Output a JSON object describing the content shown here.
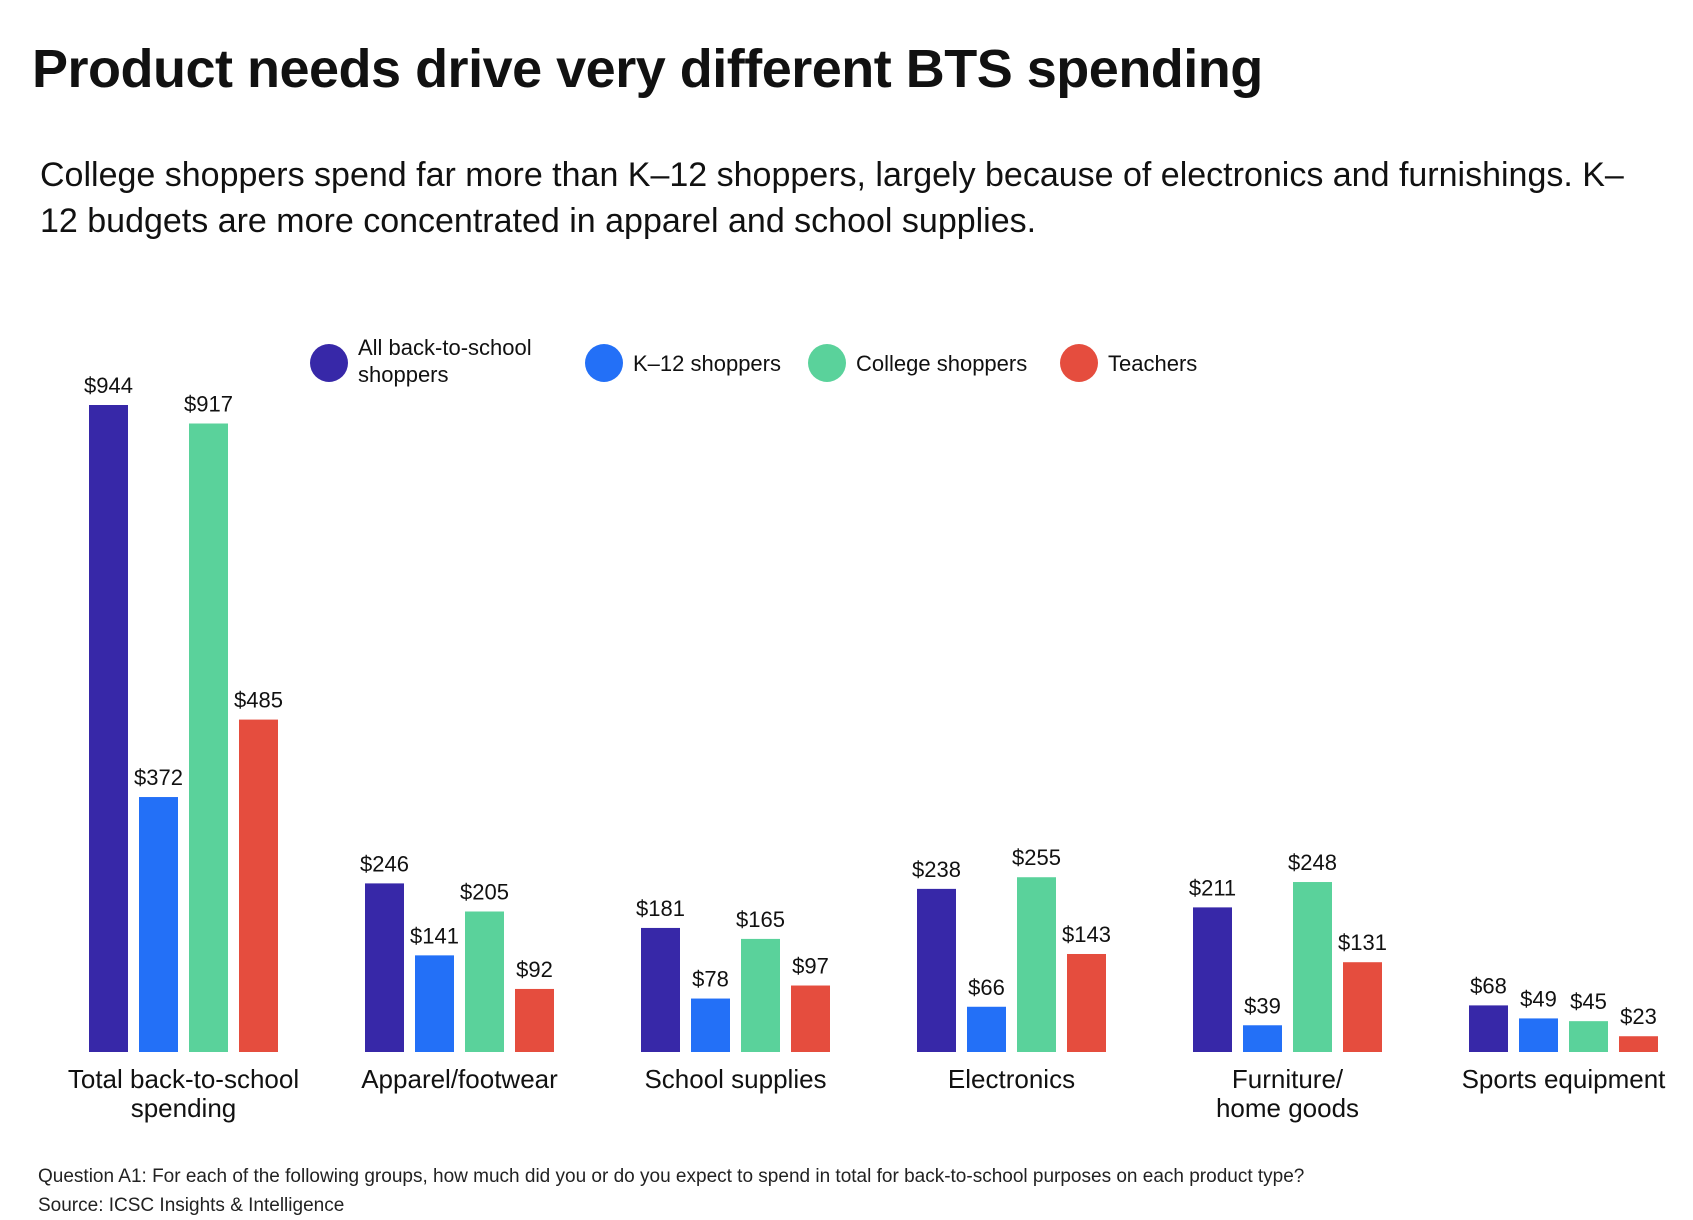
{
  "title": "Product needs drive very different BTS spending",
  "subtitle": "College shoppers spend far more than K–12 shoppers, largely because of electronics and furnishings. K–12 budgets are more concentrated in apparel and school supplies.",
  "footnote": {
    "question": "Question A1: For each of the following groups, how much did you or do you expect to spend in total for back-to-school purposes on each product type?",
    "source": "Source: ICSC Insights & Intelligence"
  },
  "legend": [
    {
      "label": "All back-to-school shoppers",
      "color": "#3728a8"
    },
    {
      "label": "K–12 shoppers",
      "color": "#2370f7"
    },
    {
      "label": "College shoppers",
      "color": "#5ad29b"
    },
    {
      "label": "Teachers",
      "color": "#e54d3e"
    }
  ],
  "chart_data": {
    "type": "bar",
    "title": "Product needs drive very different BTS spending",
    "categories": [
      [
        "Total back-to-school",
        "spending"
      ],
      [
        "Apparel/footwear"
      ],
      [
        "School supplies"
      ],
      [
        "Electronics"
      ],
      [
        "Furniture/",
        "home goods"
      ],
      [
        "Sports equipment"
      ]
    ],
    "series": [
      {
        "name": "All back-to-school shoppers",
        "color": "#3728a8",
        "values": [
          944,
          246,
          181,
          238,
          211,
          68
        ],
        "labels": [
          "$944",
          "$246",
          "$181",
          "$238",
          "$211",
          "$68"
        ]
      },
      {
        "name": "K–12 shoppers",
        "color": "#2370f7",
        "values": [
          372,
          141,
          78,
          66,
          39,
          49
        ],
        "labels": [
          "$372",
          "$141",
          "$78",
          "$66",
          "$39",
          "$49"
        ]
      },
      {
        "name": "College shoppers",
        "color": "#5ad29b",
        "values": [
          917,
          205,
          165,
          255,
          248,
          45
        ],
        "labels": [
          "$917",
          "$205",
          "$165",
          "$255",
          "$248",
          "$45"
        ]
      },
      {
        "name": "Teachers",
        "color": "#e54d3e",
        "values": [
          485,
          92,
          97,
          143,
          131,
          23
        ],
        "labels": [
          "$485",
          "$92",
          "$97",
          "$143",
          "$131",
          "$23"
        ]
      }
    ],
    "ylim": [
      0,
      944
    ],
    "grid": false,
    "legend_position": "top"
  }
}
